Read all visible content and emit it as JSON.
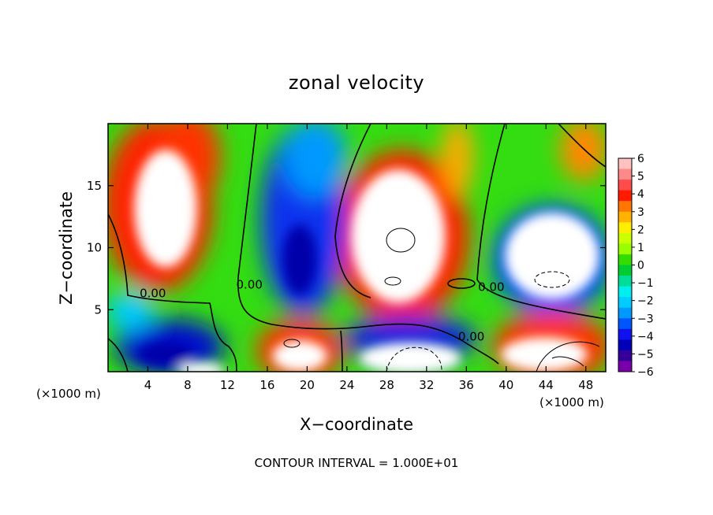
{
  "chart_data": {
    "type": "heatmap",
    "title": "zonal velocity",
    "xlabel": "X−coordinate",
    "ylabel": "Z−coordinate",
    "x_unit_left": "(×1000 m)",
    "x_unit_right": "(×1000 m)",
    "xlim": [
      0,
      50
    ],
    "ylim": [
      0,
      20
    ],
    "xticks": [
      4,
      8,
      12,
      16,
      20,
      24,
      28,
      32,
      36,
      40,
      44,
      48
    ],
    "yticks": [
      5,
      10,
      15
    ],
    "colorbar": {
      "ticks": [
        "6",
        "5",
        "4",
        "3",
        "2",
        "1",
        "0",
        "−1",
        "−2",
        "−3",
        "−4",
        "−5",
        "−6"
      ],
      "range": [
        -6,
        6
      ]
    },
    "contour_labels": [
      {
        "text": "0.00",
        "x": 4.5,
        "y": 6.0
      },
      {
        "text": "0.00",
        "x": 14.2,
        "y": 6.7
      },
      {
        "text": "0.00",
        "x": 38.5,
        "y": 6.5
      },
      {
        "text": "0.00",
        "x": 36.5,
        "y": 2.5
      }
    ],
    "contour_interval_text": "CONTOUR INTERVAL = 1.000E+01",
    "grid": false
  }
}
